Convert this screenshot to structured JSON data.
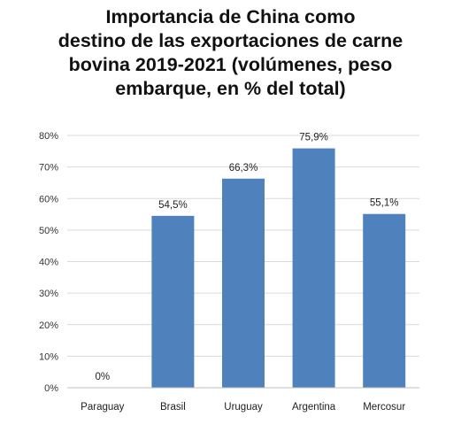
{
  "chart_data": {
    "type": "bar",
    "title_lines": [
      "Importancia de China como",
      "destino de las exportaciones de carne",
      "bovina 2019-2021 (volúmenes, peso",
      "embarque, en % del total)"
    ],
    "categories": [
      "Paraguay",
      "Brasil",
      "Uruguay",
      "Argentina",
      "Mercosur"
    ],
    "values": [
      0,
      54.5,
      66.3,
      75.9,
      55.1
    ],
    "value_labels": [
      "0%",
      "54,5%",
      "66,3%",
      "75,9%",
      "55,1%"
    ],
    "y_ticks": [
      0,
      10,
      20,
      30,
      40,
      50,
      60,
      70,
      80
    ],
    "y_tick_labels": [
      "0%",
      "10%",
      "20%",
      "30%",
      "40%",
      "50%",
      "60%",
      "70%",
      "80%"
    ],
    "ylim": [
      0,
      80
    ],
    "grid": true,
    "legend": "none",
    "bar_color": "#4f81bd",
    "grid_color": "#d9d9d9"
  }
}
